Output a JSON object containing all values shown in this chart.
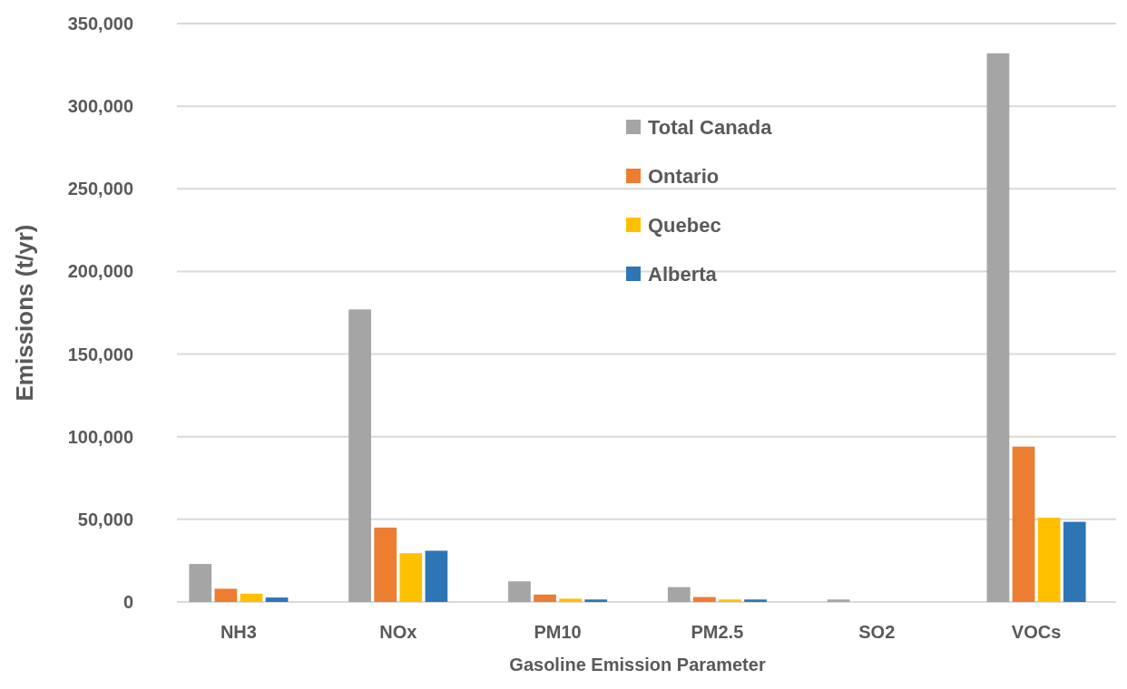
{
  "chart_data": {
    "type": "bar",
    "xlabel": "Gasoline Emission Parameter",
    "ylabel": "Emissions (t/yr)",
    "categories": [
      "NH3",
      "NOx",
      "PM10",
      "PM2.5",
      "SO2",
      "VOCs"
    ],
    "series": [
      {
        "name": "Total Canada",
        "color": "#a5a5a5",
        "values": [
          23000,
          177000,
          12500,
          9000,
          1500,
          332000
        ]
      },
      {
        "name": "Ontario",
        "color": "#ed7d31",
        "values": [
          8000,
          45000,
          4500,
          3000,
          null,
          94000
        ]
      },
      {
        "name": "Quebec",
        "color": "#ffc000",
        "values": [
          5000,
          29500,
          2000,
          1500,
          null,
          51000
        ]
      },
      {
        "name": "Alberta",
        "color": "#2e75b6",
        "values": [
          2700,
          31000,
          1500,
          1500,
          null,
          48500
        ]
      }
    ],
    "ylim": [
      0,
      350000
    ],
    "yticks": [
      {
        "value": 0,
        "label": "0"
      },
      {
        "value": 50000,
        "label": "50,000"
      },
      {
        "value": 100000,
        "label": "100,000"
      },
      {
        "value": 150000,
        "label": "150,000"
      },
      {
        "value": 200000,
        "label": "200,000"
      },
      {
        "value": 250000,
        "label": "250,000"
      },
      {
        "value": 300000,
        "label": "300,000"
      },
      {
        "value": 350000,
        "label": "350,000"
      }
    ],
    "grid": "y",
    "legend": "top"
  }
}
